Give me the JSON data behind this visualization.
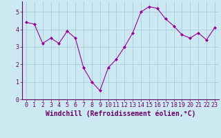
{
  "x": [
    0,
    1,
    2,
    3,
    4,
    5,
    6,
    7,
    8,
    9,
    10,
    11,
    12,
    13,
    14,
    15,
    16,
    17,
    18,
    19,
    20,
    21,
    22,
    23
  ],
  "y": [
    4.4,
    4.3,
    3.2,
    3.5,
    3.2,
    3.9,
    3.5,
    1.8,
    1.0,
    0.5,
    1.8,
    2.3,
    3.0,
    3.8,
    5.0,
    5.3,
    5.2,
    4.6,
    4.2,
    3.7,
    3.5,
    3.8,
    3.4,
    4.1
  ],
  "line_color": "#990099",
  "marker": "D",
  "marker_size": 2,
  "bg_color": "#cce8f0",
  "grid_color": "#aaccdd",
  "xlabel": "Windchill (Refroidissement éolien,°C)",
  "xlabel_fontsize": 7,
  "tick_fontsize": 6,
  "ylim": [
    0,
    5.6
  ],
  "xlim": [
    -0.5,
    23.5
  ],
  "yticks": [
    0,
    1,
    2,
    3,
    4,
    5
  ],
  "xticks": [
    0,
    1,
    2,
    3,
    4,
    5,
    6,
    7,
    8,
    9,
    10,
    11,
    12,
    13,
    14,
    15,
    16,
    17,
    18,
    19,
    20,
    21,
    22,
    23
  ]
}
